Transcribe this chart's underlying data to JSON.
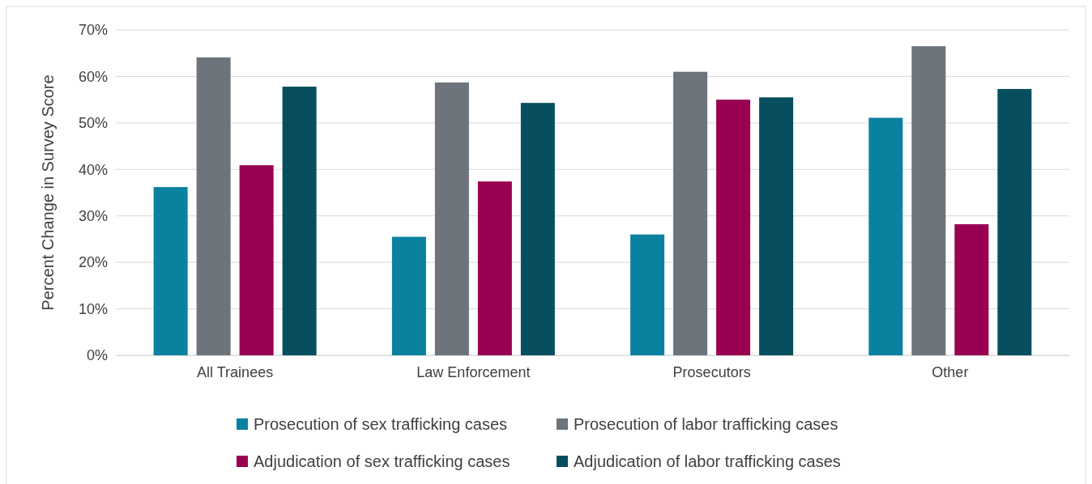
{
  "chart_data": {
    "type": "bar",
    "ylabel": "Percent Change in Survey Score",
    "categories": [
      "All Trainees",
      "Law Enforcement",
      "Prosecutors",
      "Other"
    ],
    "series": [
      {
        "name": "Prosecution of sex trafficking cases",
        "color": "#0b81a0",
        "values": [
          36.2,
          25.5,
          26.0,
          51.1
        ]
      },
      {
        "name": "Prosecution of labor trafficking cases",
        "color": "#6d747b",
        "values": [
          64.1,
          58.7,
          61.0,
          66.5
        ]
      },
      {
        "name": "Adjudication of sex trafficking cases",
        "color": "#990052",
        "values": [
          40.9,
          37.4,
          55.0,
          28.2
        ]
      },
      {
        "name": "Adjudication of labor trafficking cases",
        "color": "#074e5f",
        "values": [
          57.8,
          54.3,
          55.5,
          57.3
        ]
      }
    ],
    "ylim": [
      0,
      70
    ],
    "yticks": [
      {
        "value": 0,
        "label": "0%"
      },
      {
        "value": 10,
        "label": "10%"
      },
      {
        "value": 20,
        "label": "20%"
      },
      {
        "value": 30,
        "label": "30%"
      },
      {
        "value": 40,
        "label": "40%"
      },
      {
        "value": 50,
        "label": "50%"
      },
      {
        "value": 60,
        "label": "60%"
      },
      {
        "value": 70,
        "label": "70%"
      }
    ],
    "grid": "y",
    "legend": "bottom"
  }
}
